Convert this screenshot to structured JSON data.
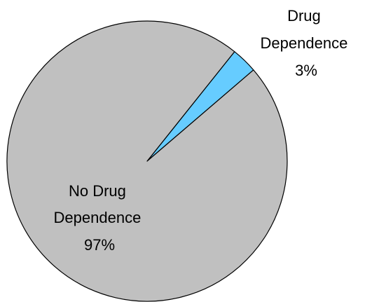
{
  "chart_data": {
    "type": "pie",
    "title": "",
    "slices": [
      {
        "label_lines": [
          "No Drug",
          "Dependence",
          "97%"
        ],
        "category": "No Drug Dependence",
        "value": 97,
        "color": "#C0C0C0"
      },
      {
        "label_lines": [
          "Drug",
          "Dependence",
          "3%"
        ],
        "category": "Drug Dependence",
        "value": 3,
        "color": "#66CCFF"
      }
    ],
    "outline_color": "#000000",
    "legend": "none"
  }
}
